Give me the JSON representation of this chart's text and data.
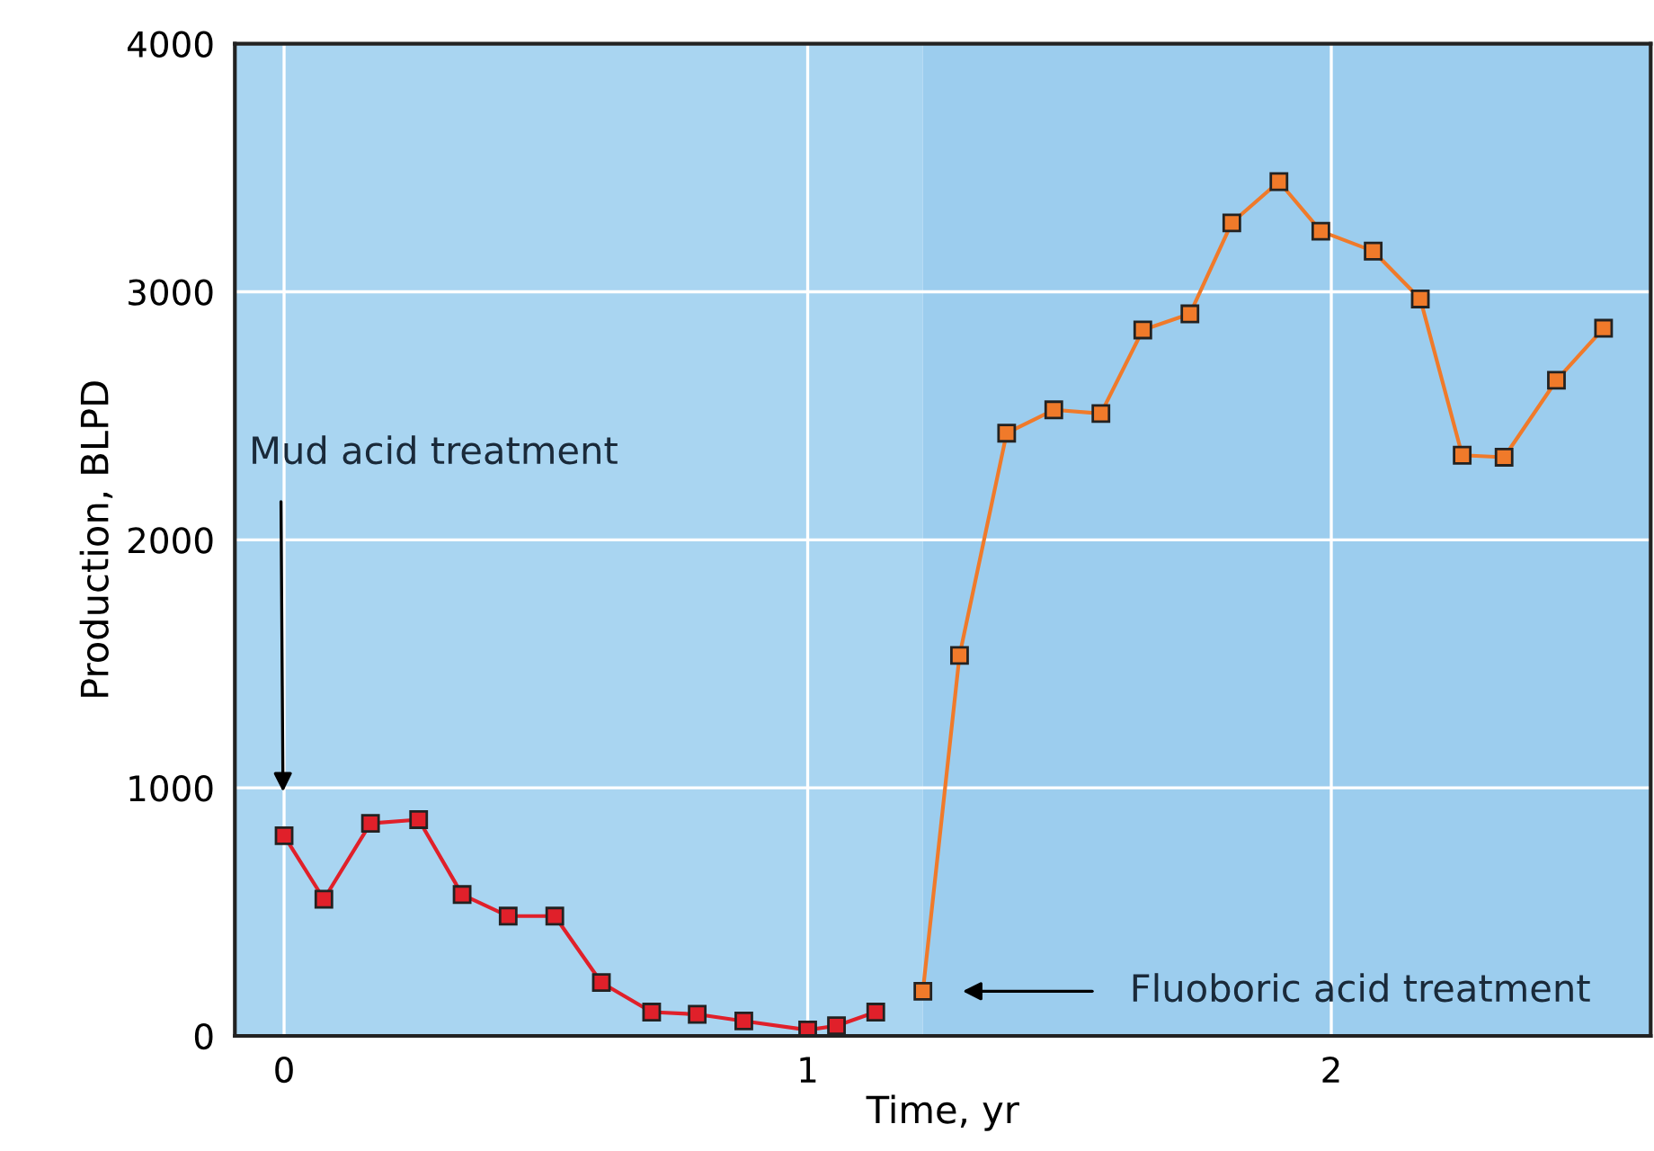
{
  "chart_data": {
    "type": "line",
    "xlabel": "Time, yr",
    "ylabel": "Production, BLPD",
    "xlim": [
      -0.094,
      2.61
    ],
    "xticks": [
      0,
      1,
      2
    ],
    "ylim": [
      0,
      4000
    ],
    "yticks": [
      0,
      1000,
      2000,
      3000,
      4000
    ],
    "grid": true,
    "marker": "square",
    "line_style": "solid",
    "series": [
      {
        "color": "#e0202a",
        "x": [
          0,
          0.076,
          0.165,
          0.257,
          0.34,
          0.428,
          0.517,
          0.606,
          0.702,
          0.789,
          0.878,
          1.0,
          1.055,
          1.13
        ],
        "values": [
          807,
          551,
          857,
          872,
          570,
          483,
          483,
          215,
          96,
          87,
          60,
          24,
          41,
          96
        ]
      },
      {
        "color": "#f07a2a",
        "x": [
          1.22,
          1.29,
          1.38,
          1.47,
          1.56,
          1.64,
          1.73,
          1.81,
          1.9,
          1.98,
          2.08,
          2.17,
          2.25,
          2.33,
          2.43,
          2.52
        ],
        "values": [
          180,
          1534,
          2430,
          2524,
          2509,
          2846,
          2911,
          3278,
          3444,
          3244,
          3164,
          2971,
          2341,
          2333,
          2643,
          2853
        ]
      }
    ],
    "bands": [
      {
        "axis": "x",
        "from": -0.094,
        "to": 1.22,
        "color": "#a9d5f1"
      },
      {
        "axis": "x",
        "from": 1.22,
        "to": 2.61,
        "color": "#9ccdee"
      }
    ],
    "annotations": [
      "Mud acid treatment",
      "Fluoboric acid treatment"
    ]
  }
}
